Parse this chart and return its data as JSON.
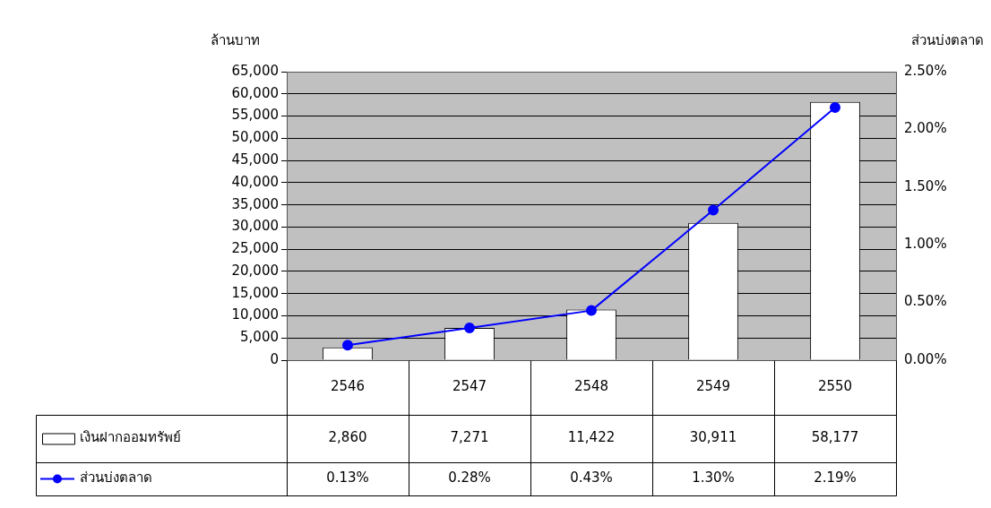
{
  "chart_data": {
    "type": "bar",
    "ylabel": "ล้านบาท",
    "y2label": "ส่วนบ่งตลาด",
    "categories": [
      "2546",
      "2547",
      "2548",
      "2549",
      "2550"
    ],
    "series": [
      {
        "name": "เงินฝากออมทรัพย์",
        "type": "bar",
        "color": "#ffffff",
        "values": [
          2860,
          7271,
          11422,
          30911,
          58177
        ],
        "value_labels": [
          "2,860",
          "7,271",
          "11,422",
          "30,911",
          "58,177"
        ]
      },
      {
        "name": "ส่วนบ่งตลาด",
        "type": "line",
        "axis": "y2",
        "color": "#0000ff",
        "marker": "circle",
        "values": [
          0.13,
          0.28,
          0.43,
          1.3,
          2.19
        ],
        "value_labels": [
          "0.13%",
          "0.28%",
          "0.43%",
          "1.30%",
          "2.19%"
        ]
      }
    ],
    "ylim": [
      0,
      65000
    ],
    "yticks": [
      {
        "value": 0,
        "label": "0"
      },
      {
        "value": 5000,
        "label": "5,000"
      },
      {
        "value": 10000,
        "label": "10,000"
      },
      {
        "value": 15000,
        "label": "15,000"
      },
      {
        "value": 20000,
        "label": "20,000"
      },
      {
        "value": 25000,
        "label": "25,000"
      },
      {
        "value": 30000,
        "label": "30,000"
      },
      {
        "value": 35000,
        "label": "35,000"
      },
      {
        "value": 40000,
        "label": "40,000"
      },
      {
        "value": 45000,
        "label": "45,000"
      },
      {
        "value": 50000,
        "label": "50,000"
      },
      {
        "value": 55000,
        "label": "55,000"
      },
      {
        "value": 60000,
        "label": "60,000"
      },
      {
        "value": 65000,
        "label": "65,000"
      }
    ],
    "y2lim": [
      0,
      2.5
    ],
    "y2ticks": [
      {
        "value": 0,
        "label": "0.00%"
      },
      {
        "value": 0.5,
        "label": "0.50%"
      },
      {
        "value": 1,
        "label": "1.00%"
      },
      {
        "value": 1.5,
        "label": "1.50%"
      },
      {
        "value": 2,
        "label": "2.00%"
      },
      {
        "value": 2.5,
        "label": "2.50%"
      }
    ],
    "grid": "y",
    "legend": "bottom",
    "line_style": "solid"
  }
}
